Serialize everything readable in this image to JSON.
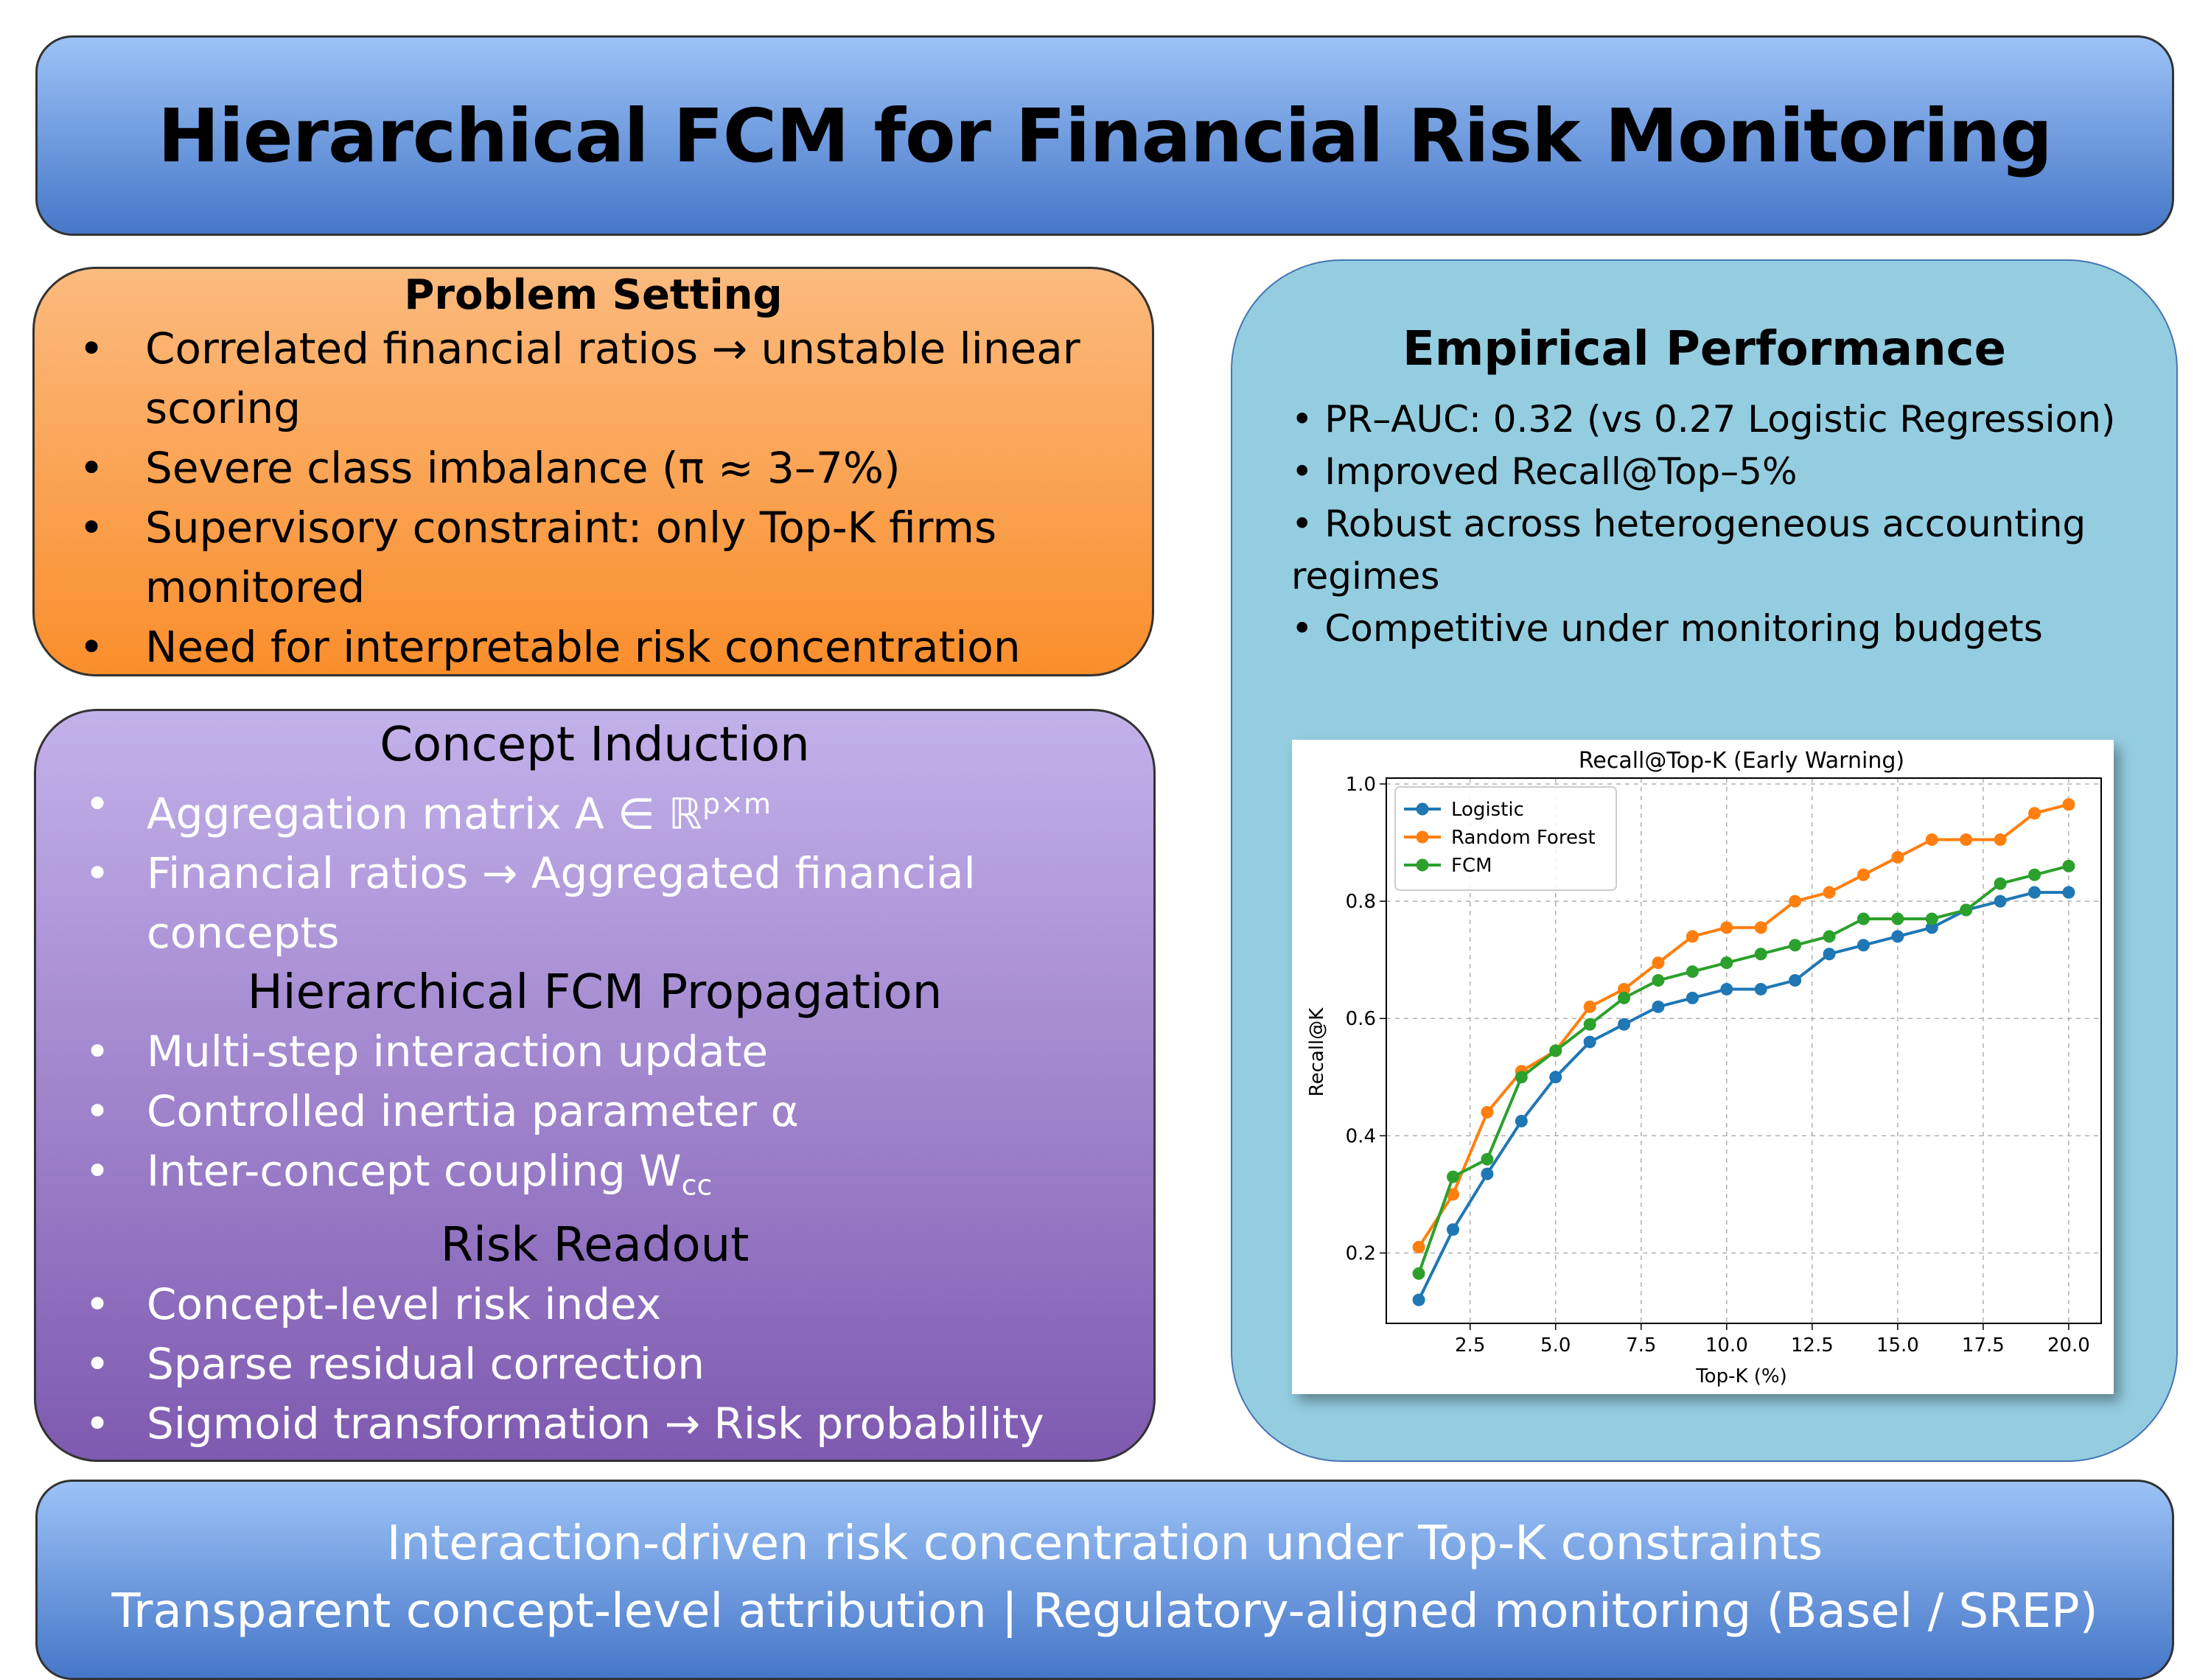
{
  "title": "Hierarchical FCM for Financial Risk Monitoring",
  "problem": {
    "heading": "Problem Setting",
    "bullet": "•",
    "items": [
      "Correlated financial ratios → unstable linear scoring",
      "Severe class imbalance (π ≈ 3–7%)",
      "Supervisory constraint: only Top-K firms monitored",
      "Need for interpretable risk concentration"
    ]
  },
  "concept": {
    "heading1": "Concept Induction",
    "item1a_main": "Aggregation matrix A ∈ ℝ",
    "item1a_sup": "p×m",
    "item1b": "Financial ratios → Aggregated financial concepts",
    "heading2": "Hierarchical FCM Propagation",
    "item2a": "Multi-step interaction update",
    "item2b": "Controlled inertia parameter α",
    "item2c_main": "Inter-concept coupling W",
    "item2c_sub": "cc",
    "heading3": "Risk Readout",
    "item3a": "Concept-level risk index",
    "item3b": "Sparse residual correction",
    "item3c": "Sigmoid transformation → Risk probability"
  },
  "performance": {
    "heading": "Empirical Performance",
    "items": [
      "• PR–AUC: 0.32 (vs 0.27 Logistic Regression)",
      "• Improved Recall@Top–5%",
      "• Robust across heterogeneous accounting regimes",
      "• Competitive under monitoring budgets"
    ]
  },
  "chart_data": {
    "type": "line",
    "title": "Recall@Top-K (Early Warning)",
    "xlabel": "Top-K (%)",
    "ylabel": "Recall@K",
    "xlim": [
      0.05,
      20.95
    ],
    "ylim": [
      0.08,
      1.01
    ],
    "xticks": [
      "2.5",
      "5.0",
      "7.5",
      "10.0",
      "12.5",
      "15.0",
      "17.5",
      "20.0"
    ],
    "yticks": [
      "0.2",
      "0.4",
      "0.6",
      "0.8",
      "1.0"
    ],
    "grid": true,
    "legend": "upper-left",
    "x": [
      1,
      2,
      3,
      4,
      5,
      6,
      7,
      8,
      9,
      10,
      11,
      12,
      13,
      14,
      15,
      16,
      17,
      18,
      19,
      20
    ],
    "series": [
      {
        "name": "Logistic",
        "color": "#1f77b4",
        "values": [
          0.12,
          0.24,
          0.335,
          0.425,
          0.5,
          0.56,
          0.59,
          0.62,
          0.635,
          0.65,
          0.65,
          0.665,
          0.71,
          0.725,
          0.74,
          0.755,
          0.785,
          0.8,
          0.815,
          0.815
        ]
      },
      {
        "name": "Random Forest",
        "color": "#ff7f0e",
        "values": [
          0.21,
          0.3,
          0.44,
          0.51,
          0.545,
          0.62,
          0.65,
          0.695,
          0.74,
          0.755,
          0.755,
          0.8,
          0.815,
          0.845,
          0.875,
          0.905,
          0.905,
          0.905,
          0.95,
          0.965
        ]
      },
      {
        "name": "FCM",
        "color": "#2ca02c",
        "values": [
          0.165,
          0.33,
          0.36,
          0.5,
          0.545,
          0.59,
          0.635,
          0.665,
          0.68,
          0.695,
          0.71,
          0.725,
          0.74,
          0.77,
          0.77,
          0.77,
          0.785,
          0.83,
          0.845,
          0.86
        ]
      }
    ]
  },
  "footer": {
    "line1": "Interaction-driven risk concentration under Top-K constraints",
    "line2": "Transparent concept-level attribution | Regulatory-aligned monitoring (Basel / SREP)"
  }
}
